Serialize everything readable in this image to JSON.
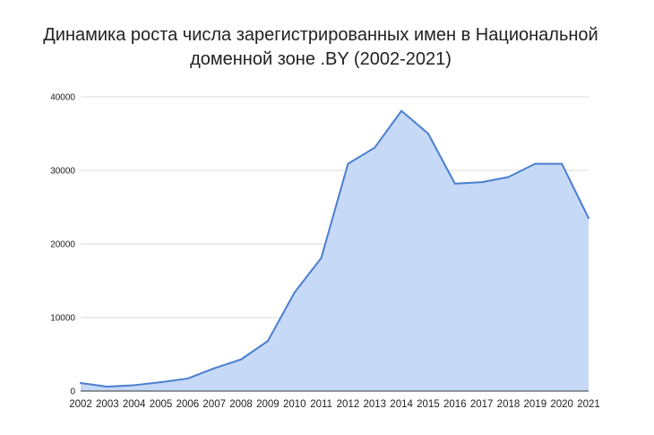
{
  "chart_data": {
    "type": "area",
    "title_lines": [
      "Динамика роста числа зарегистрированных имен в Национальной",
      "доменной зоне .BY (2002-2021)"
    ],
    "x": [
      "2002",
      "2003",
      "2004",
      "2005",
      "2006",
      "2007",
      "2008",
      "2009",
      "2010",
      "2011",
      "2012",
      "2013",
      "2014",
      "2015",
      "2016",
      "2017",
      "2018",
      "2019",
      "2020",
      "2021"
    ],
    "values": [
      1100,
      600,
      800,
      1200,
      1700,
      3100,
      4300,
      6800,
      13400,
      18100,
      30900,
      33100,
      38100,
      35000,
      28200,
      28400,
      29100,
      30900,
      30900,
      23500
    ],
    "yticks": [
      "0",
      "10000",
      "20000",
      "30000",
      "40000"
    ],
    "ylim": [
      0,
      40000
    ],
    "grid": true,
    "colors": {
      "line": "#4a7fd0",
      "fill": "#c6d9f7",
      "grid": "#d9d9d9"
    }
  }
}
